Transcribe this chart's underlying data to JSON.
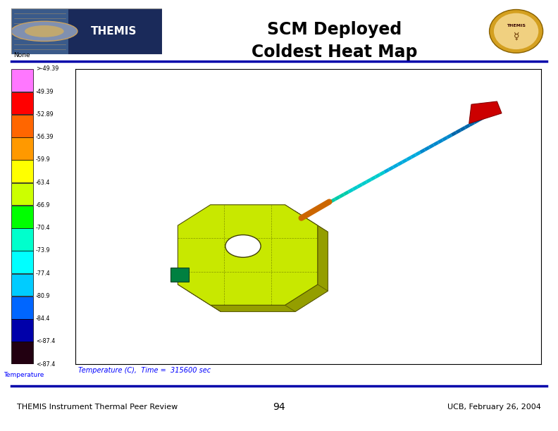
{
  "title_line1": "SCM Deployed",
  "title_line2": "Coldest Heat Map",
  "footer_left": "THEMIS Instrument Thermal Peer Review",
  "footer_center": "94",
  "footer_right": "UCB, February 26, 2004",
  "colorbar_labels": [
    ">-49.39",
    "-49.39",
    "-52.89",
    "-56.39",
    "-59.9",
    "-63.4",
    "-66.9",
    "-70.4",
    "-73.9",
    "-77.4",
    "-80.9",
    "-84.4",
    "<-87.4"
  ],
  "colorbar_colors": [
    "#ff77ff",
    "#ff0000",
    "#ff6600",
    "#ff9900",
    "#ffff00",
    "#ccff00",
    "#00ff00",
    "#00ffcc",
    "#00ffff",
    "#00ccff",
    "#0066ff",
    "#0000aa",
    "#220011"
  ],
  "bg_color": "#ffffff",
  "header_line_color": "#0000aa",
  "footer_line_color": "#0000aa",
  "caption_text": "Temperature (C),  Time =  315600 sec",
  "panel_color": "#c8e800",
  "panel_dark": "#a0c000",
  "boom_colors": [
    "#00cc88",
    "#00cccc",
    "#00cccc",
    "#00aaee",
    "#00aaee",
    "#0088dd",
    "#0066bb"
  ],
  "orange_connector": "#cc6600",
  "red_sensor": "#cc0000",
  "small_comp_color": "#008040"
}
